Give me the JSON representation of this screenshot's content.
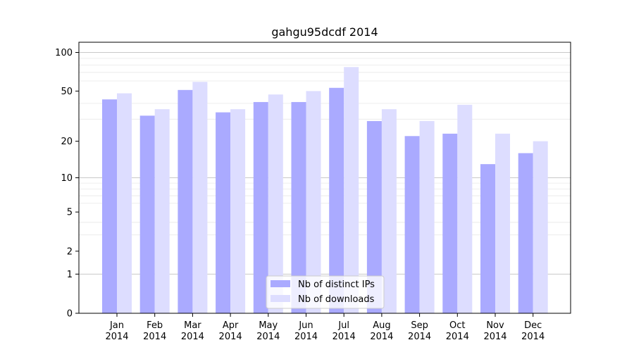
{
  "chart_data": {
    "type": "bar",
    "title": "gahgu95dcdf 2014",
    "categories": [
      [
        "Jan",
        "2014"
      ],
      [
        "Feb",
        "2014"
      ],
      [
        "Mar",
        "2014"
      ],
      [
        "Apr",
        "2014"
      ],
      [
        "May",
        "2014"
      ],
      [
        "Jun",
        "2014"
      ],
      [
        "Jul",
        "2014"
      ],
      [
        "Aug",
        "2014"
      ],
      [
        "Sep",
        "2014"
      ],
      [
        "Oct",
        "2014"
      ],
      [
        "Nov",
        "2014"
      ],
      [
        "Dec",
        "2014"
      ]
    ],
    "series": [
      {
        "name": "Nb of distinct IPs",
        "color": "#aaaaff",
        "values": [
          43,
          32,
          51,
          34,
          41,
          41,
          53,
          29,
          22,
          23,
          13,
          16
        ]
      },
      {
        "name": "Nb of downloads",
        "color": "#ddddff",
        "values": [
          48,
          36,
          59,
          36,
          47,
          50,
          77,
          36,
          29,
          39,
          23,
          20
        ]
      }
    ],
    "y_scale": "log(1+y)",
    "ylim": [
      0,
      120
    ],
    "y_ticks": [
      0,
      1,
      2,
      5,
      10,
      20,
      50,
      100
    ],
    "grid": true,
    "legend": "bottom-center"
  }
}
